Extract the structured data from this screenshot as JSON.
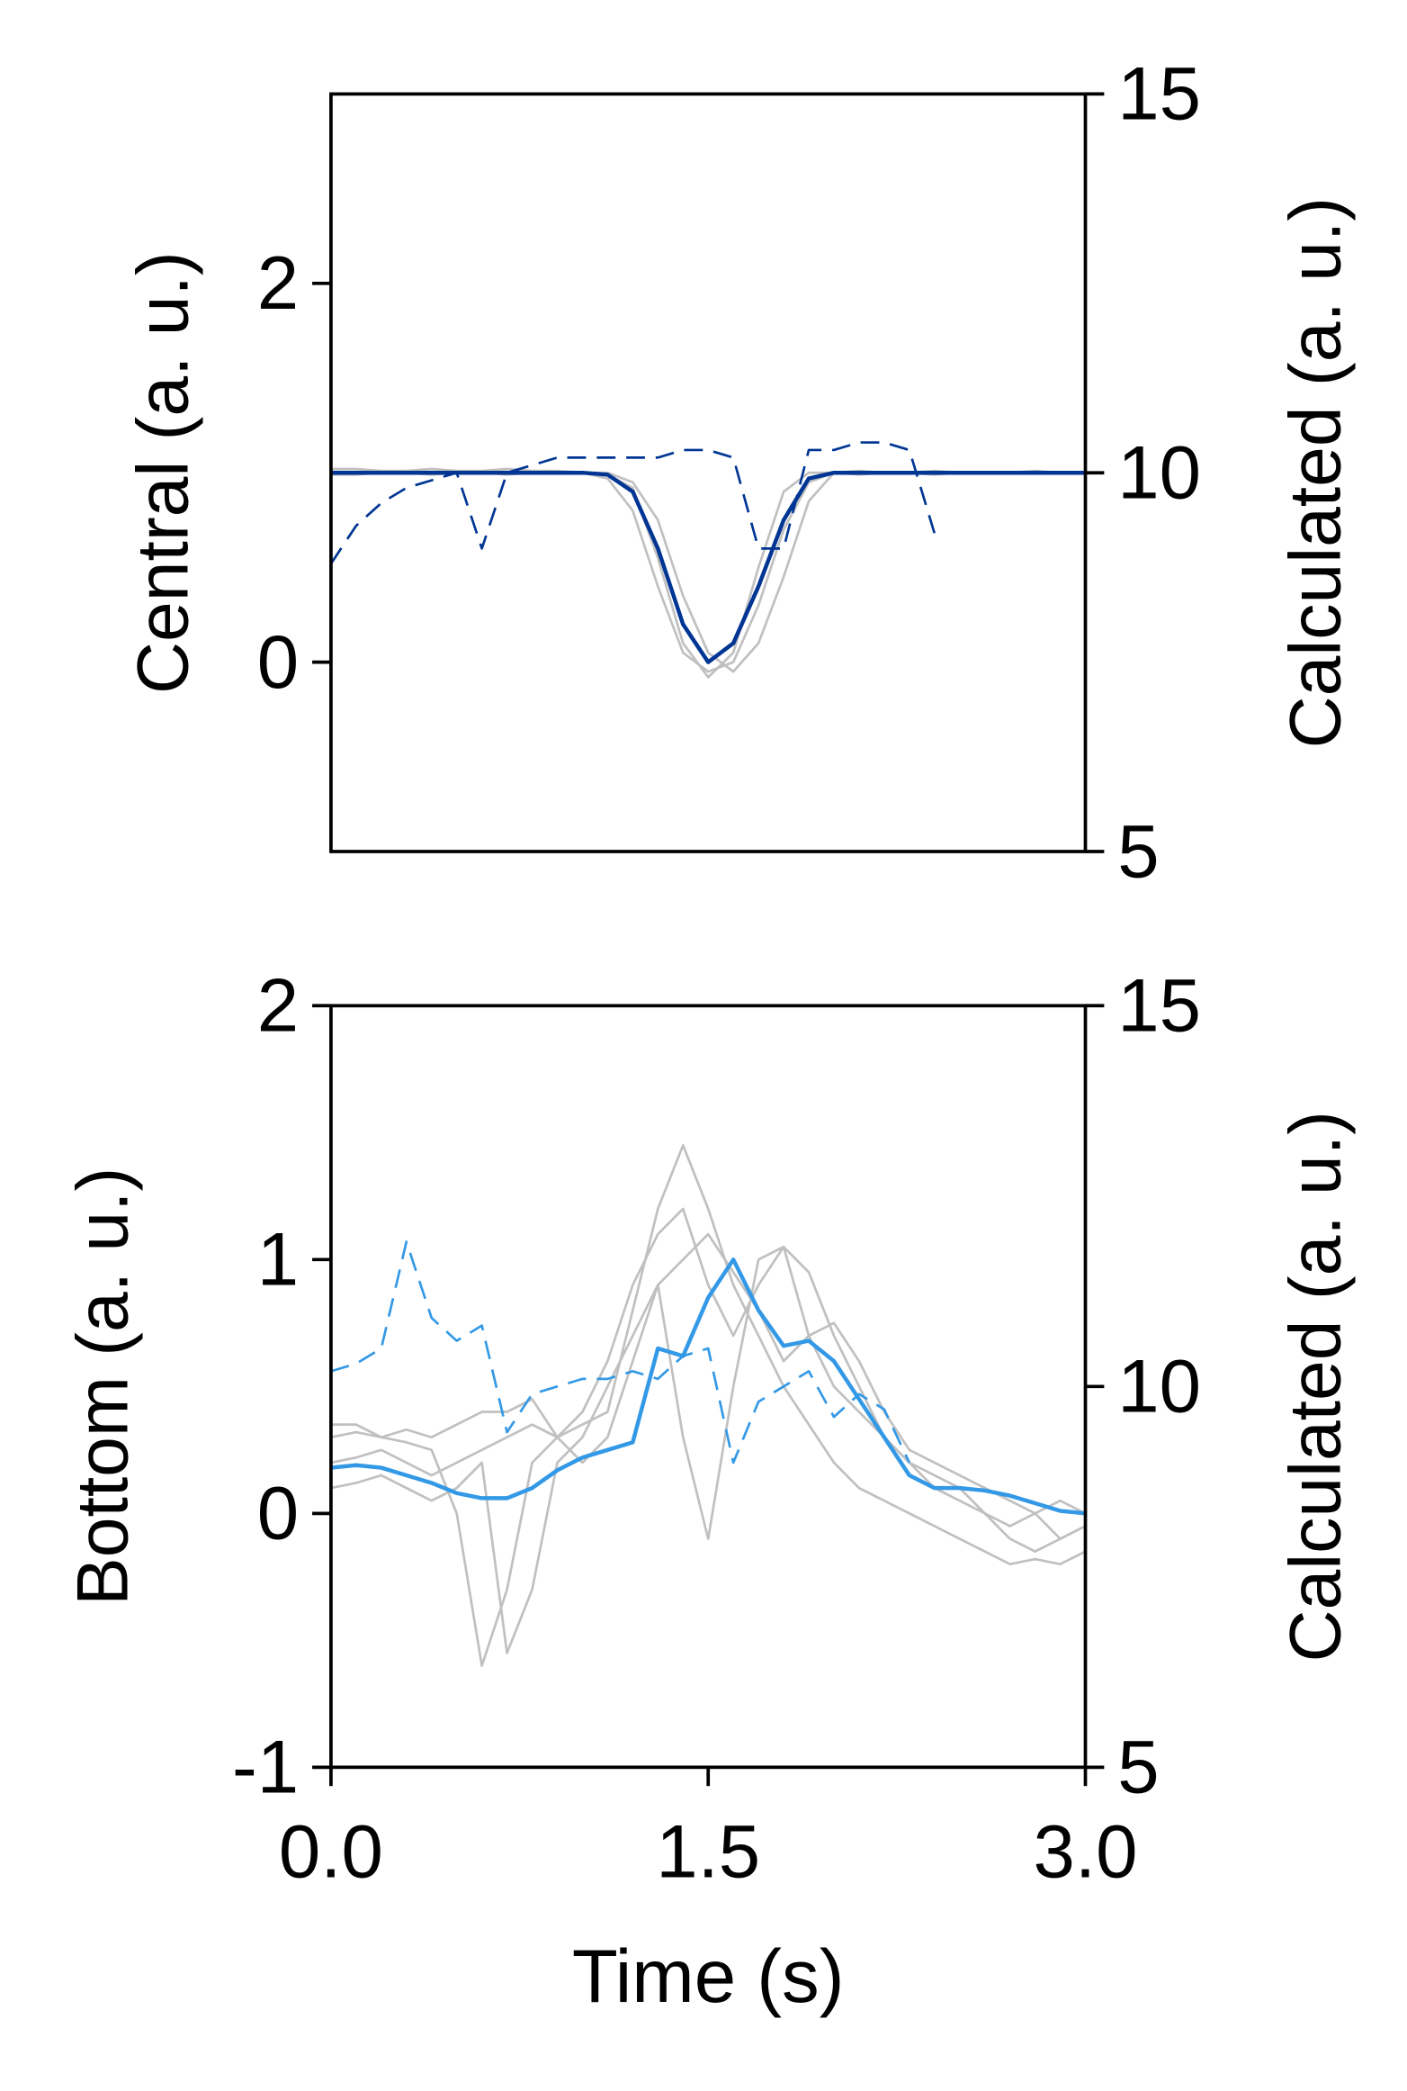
{
  "chart_data": [
    {
      "type": "line",
      "ylabel": "Central (a. u.)",
      "y2label": "Calculated (a. u.)",
      "x": [
        0,
        0.1,
        0.2,
        0.3,
        0.4,
        0.5,
        0.6,
        0.7,
        0.8,
        0.9,
        1.0,
        1.1,
        1.2,
        1.3,
        1.4,
        1.5,
        1.6,
        1.7,
        1.8,
        1.9,
        2.0,
        2.1,
        2.2,
        2.3,
        2.4,
        2.5,
        2.6,
        2.7,
        2.8,
        2.9,
        3.0
      ],
      "xlim": [
        0,
        3
      ],
      "ylim": [
        -1,
        3
      ],
      "yticks": [
        0,
        2
      ],
      "y2lim": [
        5,
        15
      ],
      "y2ticks": [
        5,
        10,
        15
      ],
      "series": [
        {
          "color": "#c0c0c0",
          "values": [
            1,
            1,
            1,
            1,
            1,
            1,
            1,
            1,
            1,
            1,
            1,
            0.97,
            0.8,
            0.4,
            0.05,
            -0.05,
            0.0,
            0.3,
            0.7,
            0.95,
            1,
            1,
            1,
            1,
            1,
            1,
            1,
            1,
            1,
            1,
            1
          ]
        },
        {
          "color": "#c0c0c0",
          "values": [
            1.02,
            1.02,
            1.01,
            1.01,
            1.02,
            1.01,
            1.01,
            1.02,
            1.01,
            1.01,
            1.0,
            1.0,
            0.95,
            0.75,
            0.35,
            0.05,
            -0.05,
            0.1,
            0.45,
            0.85,
            1.0,
            1.01,
            1.0,
            1.0,
            1.01,
            1.0,
            1.0,
            1.0,
            1.01,
            1.0,
            1.0
          ]
        },
        {
          "color": "#c0c0c0",
          "values": [
            0.99,
            0.99,
            1.0,
            1.0,
            0.99,
            1.0,
            1.0,
            0.99,
            1.0,
            1.0,
            1.0,
            0.99,
            0.92,
            0.55,
            0.1,
            -0.08,
            0.05,
            0.5,
            0.9,
            1.0,
            1.0,
            0.99,
            1.0,
            1.0,
            0.99,
            1.0,
            1.0,
            1.0,
            1.0,
            1.0,
            1.0
          ]
        },
        {
          "color": "#003594",
          "width": 3,
          "values": [
            1,
            1,
            1,
            1,
            1,
            1,
            1,
            1,
            1,
            1,
            1,
            0.99,
            0.9,
            0.6,
            0.2,
            0.0,
            0.1,
            0.4,
            0.75,
            0.97,
            1,
            1,
            1,
            1,
            1,
            1,
            1,
            1,
            1,
            1,
            1
          ]
        },
        {
          "color": "#003594",
          "axis": "y2",
          "linestyle": "dashed",
          "values": [
            8.8,
            9.3,
            9.6,
            9.8,
            9.9,
            10.0,
            9.0,
            10.0,
            10.1,
            10.2,
            10.2,
            10.2,
            10.2,
            10.2,
            10.3,
            10.3,
            10.2,
            9.0,
            9.0,
            10.3,
            10.3,
            10.4,
            10.4,
            10.3,
            9.2,
            null,
            null,
            null,
            null,
            null,
            null
          ]
        }
      ]
    },
    {
      "type": "line",
      "ylabel": "Bottom (a. u.)",
      "y2label": "Calculated (a. u.)",
      "xlabel": "Time (s)",
      "x": [
        0,
        0.1,
        0.2,
        0.3,
        0.4,
        0.5,
        0.6,
        0.7,
        0.8,
        0.9,
        1.0,
        1.1,
        1.2,
        1.3,
        1.4,
        1.5,
        1.6,
        1.7,
        1.8,
        1.9,
        2.0,
        2.1,
        2.2,
        2.3,
        2.4,
        2.5,
        2.6,
        2.7,
        2.8,
        2.9,
        3.0
      ],
      "xlim": [
        0,
        3
      ],
      "xticks": [
        {
          "value": 0,
          "label": "0.0"
        },
        1.5,
        {
          "value": 3,
          "label": "3.0"
        }
      ],
      "ylim": [
        -1,
        2
      ],
      "yticks": [
        -1,
        0,
        1,
        2
      ],
      "y2lim": [
        5,
        15
      ],
      "y2ticks": [
        5,
        10,
        15
      ],
      "series": [
        {
          "color": "#c0c0c0",
          "values": [
            0.3,
            0.32,
            0.3,
            0.28,
            0.25,
            0.0,
            -0.6,
            -0.3,
            0.2,
            0.3,
            0.35,
            0.4,
            0.8,
            1.2,
            1.45,
            1.2,
            0.9,
            0.7,
            0.5,
            0.35,
            0.2,
            0.1,
            0.05,
            0.0,
            -0.05,
            -0.1,
            -0.15,
            -0.2,
            -0.18,
            -0.2,
            -0.15
          ]
        },
        {
          "color": "#c0c0c0",
          "values": [
            0.1,
            0.12,
            0.15,
            0.1,
            0.05,
            0.1,
            0.2,
            -0.55,
            -0.3,
            0.2,
            0.3,
            0.5,
            0.7,
            0.9,
            0.3,
            -0.1,
            0.5,
            1.0,
            1.05,
            0.7,
            0.5,
            0.4,
            0.3,
            0.2,
            0.1,
            0.05,
            0.0,
            -0.05,
            0.0,
            -0.1,
            -0.05
          ]
        },
        {
          "color": "#c0c0c0",
          "values": [
            0.2,
            0.22,
            0.25,
            0.2,
            0.15,
            0.2,
            0.25,
            0.3,
            0.35,
            0.3,
            0.4,
            0.6,
            0.9,
            1.1,
            1.2,
            0.9,
            0.7,
            0.9,
            1.05,
            0.95,
            0.7,
            0.5,
            0.3,
            0.2,
            0.15,
            0.1,
            0.0,
            -0.1,
            -0.15,
            -0.1,
            -0.05
          ]
        },
        {
          "color": "#c0c0c0",
          "values": [
            0.35,
            0.35,
            0.3,
            0.33,
            0.3,
            0.35,
            0.4,
            0.4,
            0.45,
            0.3,
            0.2,
            0.3,
            0.6,
            0.9,
            1.0,
            1.1,
            0.95,
            0.8,
            0.6,
            0.7,
            0.75,
            0.6,
            0.4,
            0.25,
            0.2,
            0.15,
            0.1,
            0.05,
            0.0,
            0.05,
            0.0
          ]
        },
        {
          "color": "#3399e6",
          "width": 3,
          "values": [
            0.18,
            0.19,
            0.18,
            0.15,
            0.12,
            0.08,
            0.06,
            0.06,
            0.1,
            0.17,
            0.22,
            0.25,
            0.28,
            0.65,
            0.62,
            0.85,
            1.0,
            0.8,
            0.66,
            0.68,
            0.6,
            0.45,
            0.3,
            0.15,
            0.1,
            0.1,
            0.09,
            0.07,
            0.04,
            0.01,
            0.0
          ]
        },
        {
          "color": "#3399e6",
          "axis": "y2",
          "linestyle": "dashed",
          "values": [
            10.2,
            10.3,
            10.5,
            11.9,
            10.9,
            10.6,
            10.8,
            9.4,
            9.9,
            10.0,
            10.1,
            10.1,
            10.2,
            10.1,
            10.4,
            10.5,
            9.0,
            9.8,
            10.0,
            10.2,
            9.6,
            9.9,
            9.7,
            9.0,
            null,
            null,
            null,
            null,
            null,
            null,
            null
          ]
        }
      ]
    }
  ]
}
